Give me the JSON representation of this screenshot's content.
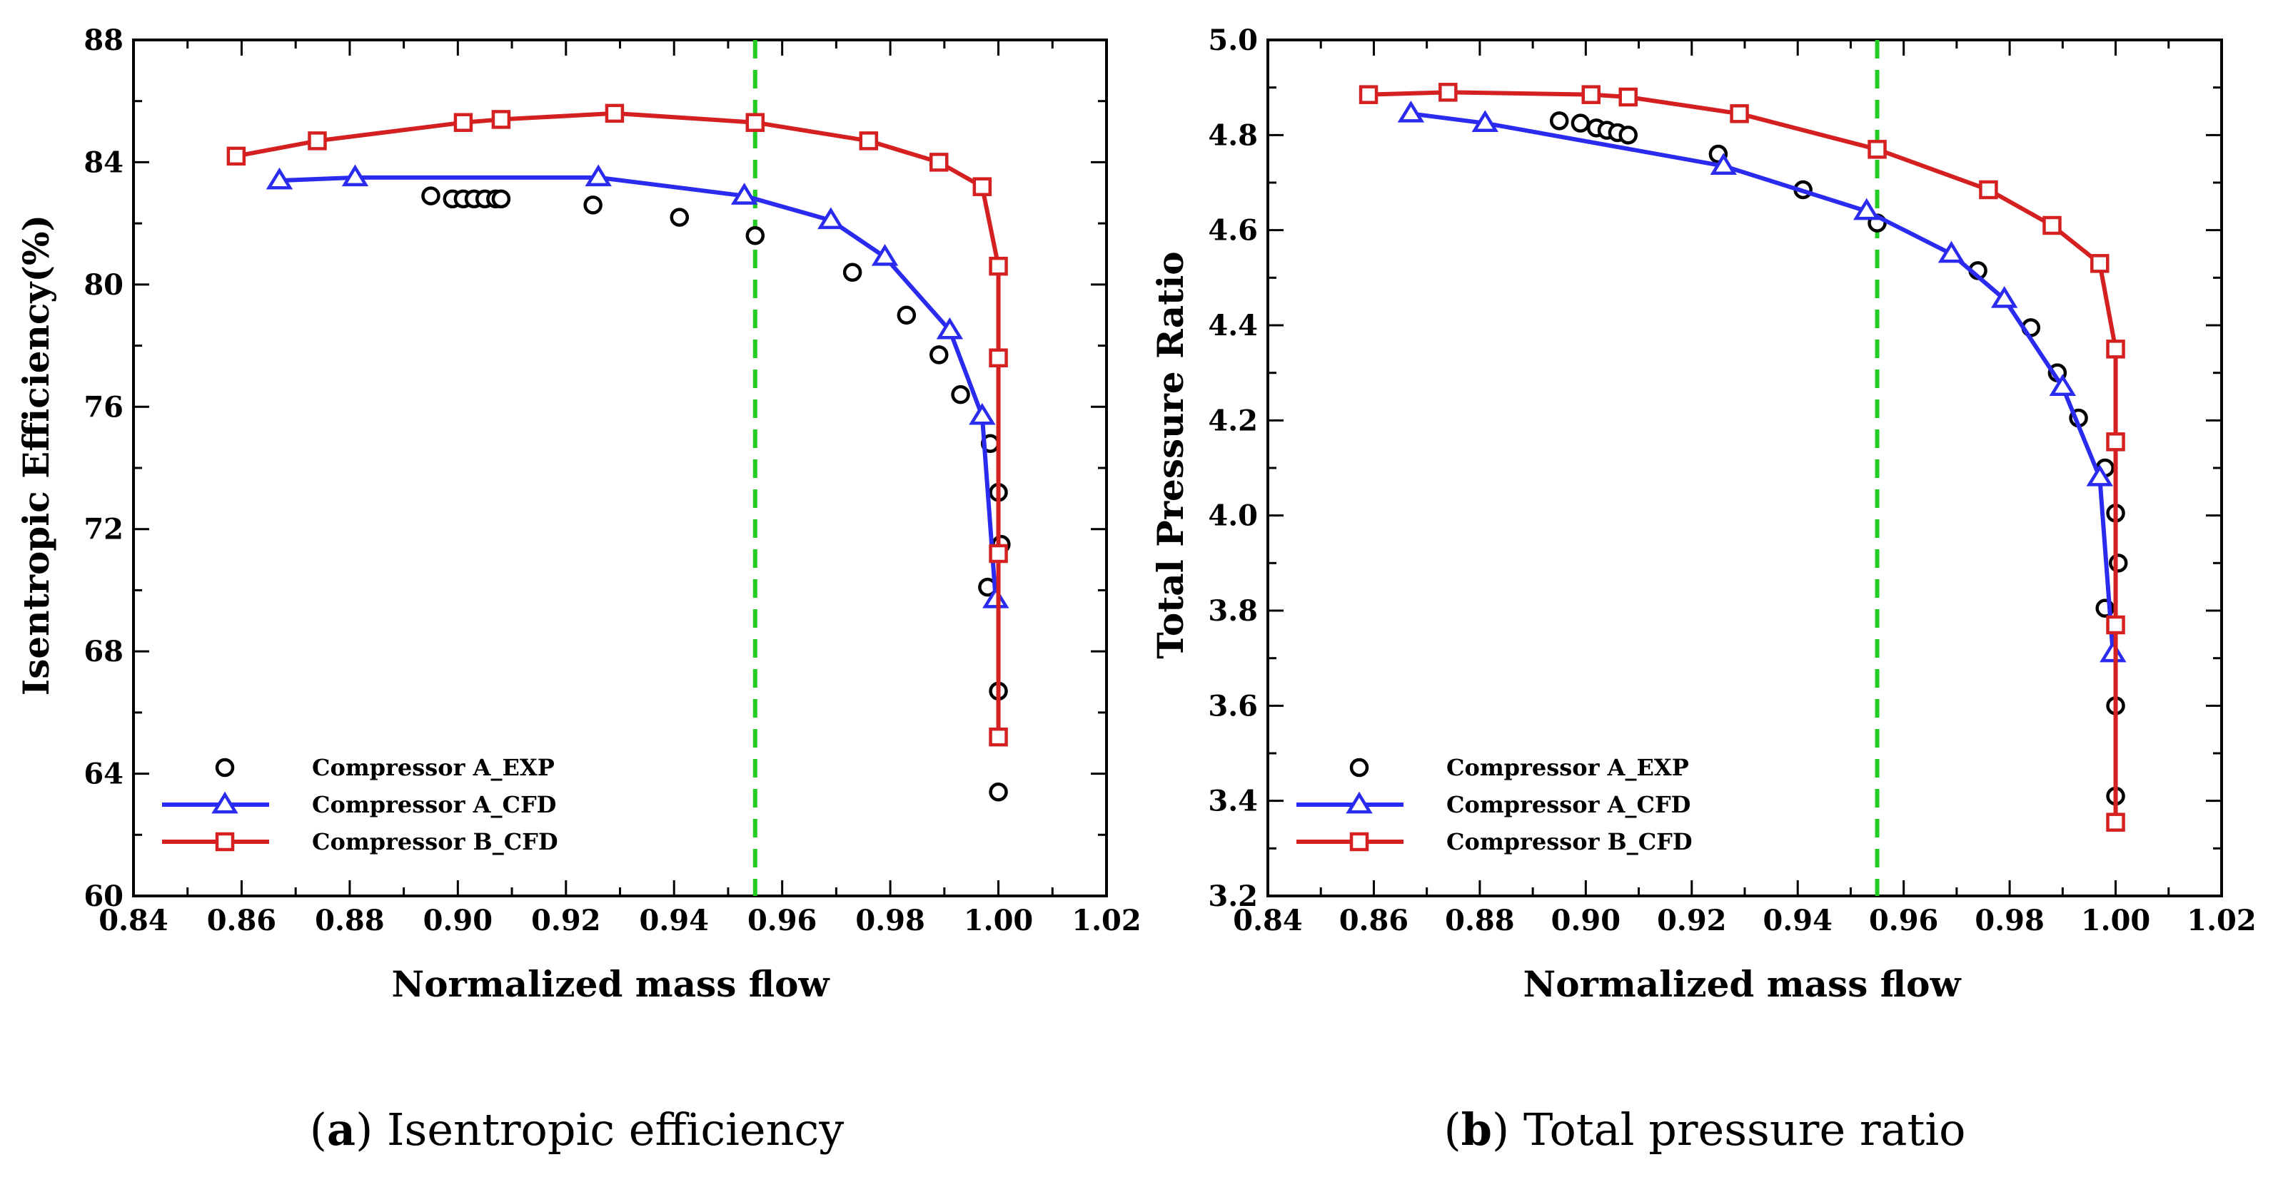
{
  "chart_data": [
    {
      "type": "line",
      "panel_letter": "a",
      "caption_text": "Isentropic efficiency",
      "xlabel": "Normalized mass flow",
      "ylabel": "Isentropic Efficiency(%)",
      "xlim": [
        0.84,
        1.02
      ],
      "ylim": [
        60,
        88
      ],
      "xticks": [
        "0.84",
        "0.86",
        "0.88",
        "0.90",
        "0.92",
        "0.94",
        "0.96",
        "0.98",
        "1.00",
        "1.02"
      ],
      "yticks": [
        "60",
        "64",
        "68",
        "72",
        "76",
        "80",
        "84",
        "88"
      ],
      "reference_line_x": 0.955,
      "legend_position": "bottom-left",
      "series": [
        {
          "name": "Compressor A_EXP",
          "marker": "circle",
          "line": false,
          "color": "#000000",
          "x": [
            0.895,
            0.899,
            0.901,
            0.903,
            0.905,
            0.907,
            0.908,
            0.925,
            0.941,
            0.955,
            0.973,
            0.983,
            0.989,
            0.993,
            0.9985,
            1.0,
            1.0005,
            0.998,
            1.0,
            1.0
          ],
          "y": [
            82.9,
            82.8,
            82.8,
            82.8,
            82.8,
            82.8,
            82.8,
            82.6,
            82.2,
            81.6,
            80.4,
            79.0,
            77.7,
            76.4,
            74.8,
            73.2,
            71.5,
            70.1,
            66.7,
            63.4
          ]
        },
        {
          "name": "Compressor A_CFD",
          "marker": "triangle",
          "line": true,
          "color": "#2b2bf0",
          "x": [
            0.867,
            0.881,
            0.926,
            0.953,
            0.969,
            0.979,
            0.991,
            0.997,
            0.9995
          ],
          "y": [
            83.4,
            83.5,
            83.5,
            82.9,
            82.1,
            80.9,
            78.5,
            75.7,
            69.7
          ]
        },
        {
          "name": "Compressor B_CFD",
          "marker": "square",
          "line": true,
          "color": "#d42020",
          "x": [
            0.859,
            0.874,
            0.901,
            0.908,
            0.929,
            0.955,
            0.976,
            0.989,
            0.997,
            1.0,
            1.0,
            1.0,
            1.0
          ],
          "y": [
            84.2,
            84.7,
            85.3,
            85.4,
            85.6,
            85.3,
            84.7,
            84.0,
            83.2,
            80.6,
            77.6,
            71.2,
            65.2
          ]
        }
      ]
    },
    {
      "type": "line",
      "panel_letter": "b",
      "caption_text": "Total pressure ratio",
      "xlabel": "Normalized mass flow",
      "ylabel": "Total Pressure Ratio",
      "xlim": [
        0.84,
        1.02
      ],
      "ylim": [
        3.2,
        5.0
      ],
      "xticks": [
        "0.84",
        "0.86",
        "0.88",
        "0.90",
        "0.92",
        "0.94",
        "0.96",
        "0.98",
        "1.00",
        "1.02"
      ],
      "yticks": [
        "3.2",
        "3.4",
        "3.6",
        "3.8",
        "4.0",
        "4.2",
        "4.4",
        "4.6",
        "4.8",
        "5.0"
      ],
      "reference_line_x": 0.955,
      "legend_position": "bottom-left",
      "series": [
        {
          "name": "Compressor A_EXP",
          "marker": "circle",
          "line": false,
          "color": "#000000",
          "x": [
            0.895,
            0.899,
            0.902,
            0.904,
            0.906,
            0.908,
            0.925,
            0.941,
            0.955,
            0.974,
            0.984,
            0.989,
            0.993,
            0.998,
            1.0,
            1.0005,
            0.998,
            1.0,
            1.0
          ],
          "y": [
            4.83,
            4.825,
            4.815,
            4.81,
            4.805,
            4.8,
            4.76,
            4.685,
            4.615,
            4.515,
            4.395,
            4.3,
            4.205,
            4.1,
            4.005,
            3.9,
            3.805,
            3.6,
            3.41
          ]
        },
        {
          "name": "Compressor A_CFD",
          "marker": "triangle",
          "line": true,
          "color": "#2b2bf0",
          "x": [
            0.867,
            0.881,
            0.926,
            0.953,
            0.969,
            0.979,
            0.99,
            0.997,
            0.9995
          ],
          "y": [
            4.845,
            4.825,
            4.735,
            4.64,
            4.55,
            4.455,
            4.27,
            4.08,
            3.71
          ]
        },
        {
          "name": "Compressor B_CFD",
          "marker": "square",
          "line": true,
          "color": "#d42020",
          "x": [
            0.859,
            0.874,
            0.901,
            0.908,
            0.929,
            0.955,
            0.976,
            0.988,
            0.997,
            1.0,
            1.0,
            1.0,
            1.0
          ],
          "y": [
            4.885,
            4.89,
            4.885,
            4.88,
            4.845,
            4.77,
            4.685,
            4.61,
            4.53,
            4.35,
            4.155,
            3.77,
            3.355
          ]
        }
      ]
    }
  ]
}
